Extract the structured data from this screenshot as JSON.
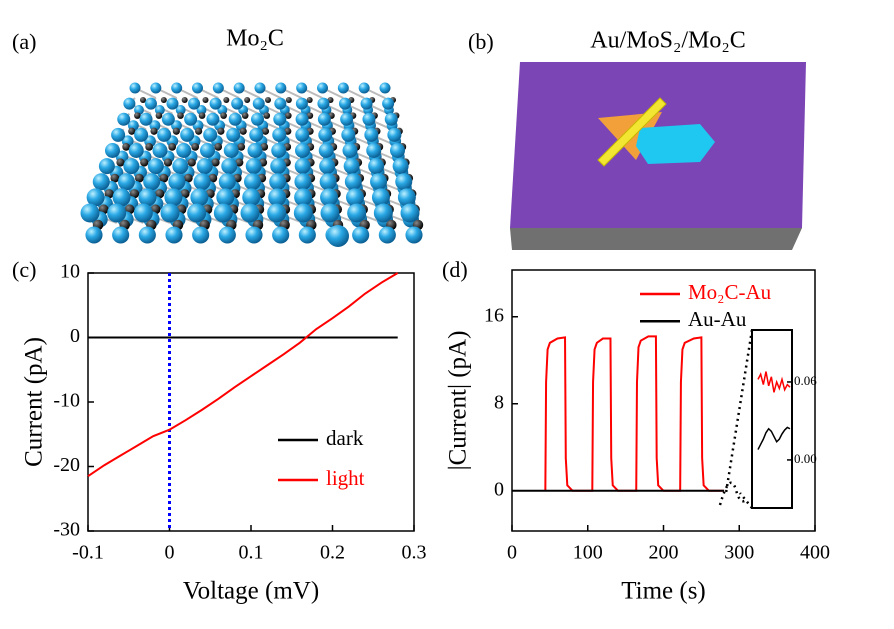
{
  "figure": {
    "panels": [
      {
        "label": "(a)",
        "title": "Mo₂C"
      },
      {
        "label": "(b)",
        "title": "Au/MoS₂/Mo₂C"
      }
    ]
  },
  "chart_data": [
    {
      "type": "line",
      "panel_label": "(c)",
      "x_label": "Voltage (mV)",
      "y_label": "Current (pA)",
      "x": [
        -0.1,
        -0.08,
        -0.06,
        -0.04,
        -0.02,
        0,
        0.02,
        0.04,
        0.06,
        0.08,
        0.1,
        0.12,
        0.14,
        0.16,
        0.18,
        0.2,
        0.22,
        0.24,
        0.26,
        0.28
      ],
      "series": [
        {
          "name": "dark",
          "color": "#000000",
          "values": [
            0,
            0,
            0,
            0,
            0,
            0,
            0,
            0,
            0,
            0,
            0,
            0,
            0,
            0,
            0,
            0,
            0,
            0,
            0,
            0
          ]
        },
        {
          "name": "light",
          "color": "#ff0000",
          "values": [
            -21.5,
            -19.8,
            -18.3,
            -16.8,
            -15.3,
            -14.3,
            -12.8,
            -11.2,
            -9.5,
            -7.7,
            -6,
            -4.3,
            -2.6,
            -0.8,
            1.3,
            3,
            4.8,
            6.8,
            8.5,
            10
          ]
        }
      ],
      "xlim": [
        -0.1,
        0.3
      ],
      "xticks": [
        -0.1,
        0,
        0.1,
        0.2,
        0.3
      ],
      "ylim": [
        -30,
        10
      ],
      "yticks": [
        -30,
        -20,
        -10,
        0,
        10
      ],
      "vline": {
        "x": 0,
        "color": "#0000ff"
      },
      "legend": "lower right"
    },
    {
      "type": "line",
      "panel_label": "(d)",
      "x_label": "Time (s)",
      "y_label": "|Current| (pA)",
      "x": [
        0,
        44,
        45,
        47,
        50,
        60,
        70,
        71,
        73,
        80,
        100,
        106,
        107,
        109,
        112,
        120,
        130,
        131,
        133,
        140,
        160,
        164,
        165,
        167,
        170,
        180,
        190,
        191,
        193,
        200,
        220,
        222,
        223,
        225,
        228,
        240,
        250,
        251,
        253,
        260,
        280
      ],
      "series": [
        {
          "name": "Mo₂C-Au",
          "color": "#ff0000",
          "values": [
            null,
            0,
            10,
            13,
            13.6,
            14,
            14.1,
            3,
            0.5,
            0,
            0,
            0,
            10,
            13,
            13.6,
            14,
            14,
            3,
            0.5,
            0,
            0,
            0,
            10,
            13.2,
            13.8,
            14.2,
            14.2,
            3,
            0.5,
            0,
            0,
            0,
            10,
            13,
            13.6,
            14,
            14.1,
            3,
            0.5,
            0,
            0
          ]
        },
        {
          "name": "Au-Au",
          "color": "#000000",
          "values": [
            0,
            0,
            0,
            0,
            0,
            0,
            0,
            0,
            0,
            0,
            0,
            0,
            0,
            0,
            0,
            0,
            0,
            0,
            0,
            0,
            0,
            0,
            0,
            0,
            0,
            0,
            0,
            0,
            0,
            0,
            0,
            0,
            0,
            0,
            0,
            0,
            0,
            0,
            0,
            0,
            0
          ]
        }
      ],
      "xlim": [
        0,
        400
      ],
      "xticks": [
        0,
        100,
        200,
        300,
        400
      ],
      "ylim": [
        -3.7,
        20.3
      ],
      "yticks": [
        0,
        8,
        16
      ],
      "legend": "upper right",
      "inset": {
        "ylim": [
          -0.037,
          0.1
        ],
        "yticks": [
          {
            "value": 0,
            "label": "0.00"
          },
          {
            "value": 0.06,
            "label": "0.06"
          }
        ],
        "series": [
          {
            "color": "#ff0000",
            "values": [
              0.062,
              0.066,
              0.058,
              0.068,
              0.057,
              0.064,
              0.052,
              0.06,
              0.055,
              0.062,
              0.054,
              0.058,
              0.056
            ]
          },
          {
            "color": "#000000",
            "values": [
              0.008,
              0.012,
              0.016,
              0.021,
              0.024,
              0.022,
              0.018,
              0.014,
              0.016,
              0.02,
              0.023,
              0.025,
              0.024
            ]
          }
        ]
      }
    }
  ]
}
